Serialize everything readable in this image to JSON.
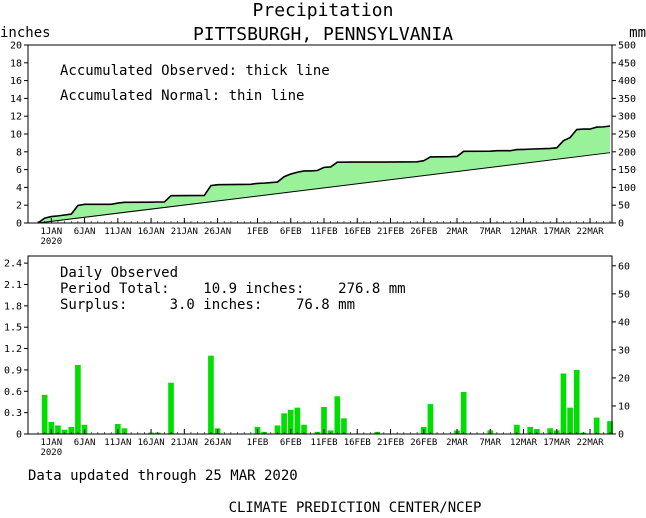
{
  "title": "Precipitation",
  "subtitle": "PITTSBURGH, PENNSYLVANIA",
  "updated": "Data updated through 25 MAR 2020",
  "footer": "CLIMATE PREDICTION CENTER/NCEP",
  "chart_data": [
    {
      "type": "area",
      "panel": "accumulated",
      "ylabel_left": "inches",
      "ylabel_right": "mm",
      "ylim": [
        0,
        20
      ],
      "yticks": [
        "0",
        "2",
        "4",
        "6",
        "8",
        "10",
        "12",
        "14",
        "16",
        "18",
        "20"
      ],
      "ylim_right": [
        0,
        500
      ],
      "yticks_right": [
        "0",
        "50",
        "100",
        "150",
        "200",
        "250",
        "300",
        "350",
        "400",
        "450",
        "500"
      ],
      "annotations": [
        "Accumulated Observed: thick line",
        "Accumulated Normal: thin line"
      ],
      "x_start": "2019-12-30",
      "x_end": "2020-03-25",
      "xtick_labels": [
        "1JAN",
        "6JAN",
        "11JAN",
        "16JAN",
        "21JAN",
        "26JAN",
        "1FEB",
        "6FEB",
        "11FEB",
        "16FEB",
        "21FEB",
        "26FEB",
        "2MAR",
        "7MAR",
        "12MAR",
        "17MAR",
        "22MAR"
      ],
      "xtick_dates": [
        "2020-01-01",
        "2020-01-06",
        "2020-01-11",
        "2020-01-16",
        "2020-01-21",
        "2020-01-26",
        "2020-02-01",
        "2020-02-06",
        "2020-02-11",
        "2020-02-16",
        "2020-02-21",
        "2020-02-26",
        "2020-03-02",
        "2020-03-07",
        "2020-03-12",
        "2020-03-17",
        "2020-03-22"
      ],
      "year_label": "2020",
      "fill_color": "#99f299",
      "series": [
        {
          "name": "Accumulated Observed",
          "dates": [
            "2019-12-30",
            "2019-12-31",
            "2020-01-01",
            "2020-01-02",
            "2020-01-03",
            "2020-01-04",
            "2020-01-05",
            "2020-01-06",
            "2020-01-10",
            "2020-01-11",
            "2020-01-12",
            "2020-01-16",
            "2020-01-17",
            "2020-01-18",
            "2020-01-19",
            "2020-01-24",
            "2020-01-25",
            "2020-01-26",
            "2020-01-31",
            "2020-02-01",
            "2020-02-02",
            "2020-02-04",
            "2020-02-05",
            "2020-02-06",
            "2020-02-07",
            "2020-02-08",
            "2020-02-09",
            "2020-02-10",
            "2020-02-11",
            "2020-02-12",
            "2020-02-13",
            "2020-02-14",
            "2020-02-15",
            "2020-02-20",
            "2020-02-25",
            "2020-02-26",
            "2020-02-27",
            "2020-03-01",
            "2020-03-02",
            "2020-03-03",
            "2020-03-07",
            "2020-03-08",
            "2020-03-10",
            "2020-03-11",
            "2020-03-12",
            "2020-03-13",
            "2020-03-16",
            "2020-03-17",
            "2020-03-18",
            "2020-03-19",
            "2020-03-20",
            "2020-03-21",
            "2020-03-22",
            "2020-03-23",
            "2020-03-24",
            "2020-03-25"
          ],
          "values": [
            0.0,
            0.55,
            0.72,
            0.8,
            0.9,
            1.0,
            1.97,
            2.1,
            2.1,
            2.24,
            2.32,
            2.34,
            2.36,
            2.36,
            3.07,
            3.1,
            4.2,
            4.3,
            4.35,
            4.45,
            4.48,
            4.6,
            5.2,
            5.5,
            5.7,
            5.85,
            5.85,
            5.9,
            6.25,
            6.3,
            6.83,
            6.83,
            6.85,
            6.85,
            6.88,
            7.0,
            7.42,
            7.45,
            7.48,
            8.05,
            8.07,
            8.12,
            8.12,
            8.25,
            8.27,
            8.3,
            8.38,
            8.45,
            9.25,
            9.6,
            10.5,
            10.55,
            10.55,
            10.78,
            10.8,
            10.9
          ]
        },
        {
          "name": "Accumulated Normal",
          "dates": [
            "2019-12-30",
            "2020-03-25"
          ],
          "values": [
            0.0,
            7.9
          ]
        }
      ]
    },
    {
      "type": "bar",
      "panel": "daily",
      "ylim": [
        0,
        2.5
      ],
      "yticks": [
        "0",
        "0.3",
        "0.6",
        "0.9",
        "1.2",
        "1.5",
        "1.8",
        "2.1",
        "2.4"
      ],
      "ylim_right": [
        0,
        63.5
      ],
      "yticks_right": [
        "0",
        "10",
        "20",
        "30",
        "40",
        "50",
        "60"
      ],
      "annotations": [
        "Daily Observed",
        "Period Total:    10.9 inches:    276.8 mm",
        "Surplus:     3.0 inches:    76.8 mm"
      ],
      "bar_color": "#00dd00",
      "xtick_labels": [
        "1JAN",
        "6JAN",
        "11JAN",
        "16JAN",
        "21JAN",
        "26JAN",
        "1FEB",
        "6FEB",
        "11FEB",
        "16FEB",
        "21FEB",
        "26FEB",
        "2MAR",
        "7MAR",
        "12MAR",
        "17MAR",
        "22MAR"
      ],
      "xtick_dates": [
        "2020-01-01",
        "2020-01-06",
        "2020-01-11",
        "2020-01-16",
        "2020-01-21",
        "2020-01-26",
        "2020-02-01",
        "2020-02-06",
        "2020-02-11",
        "2020-02-16",
        "2020-02-21",
        "2020-02-26",
        "2020-03-02",
        "2020-03-07",
        "2020-03-12",
        "2020-03-17",
        "2020-03-22"
      ],
      "year_label": "2020",
      "x": [
        "2019-12-31",
        "2020-01-01",
        "2020-01-02",
        "2020-01-03",
        "2020-01-04",
        "2020-01-05",
        "2020-01-06",
        "2020-01-11",
        "2020-01-12",
        "2020-01-16",
        "2020-01-17",
        "2020-01-19",
        "2020-01-25",
        "2020-01-26",
        "2020-02-01",
        "2020-02-02",
        "2020-02-04",
        "2020-02-05",
        "2020-02-06",
        "2020-02-07",
        "2020-02-08",
        "2020-02-10",
        "2020-02-11",
        "2020-02-12",
        "2020-02-13",
        "2020-02-14",
        "2020-02-19",
        "2020-02-26",
        "2020-02-27",
        "2020-03-02",
        "2020-03-03",
        "2020-03-07",
        "2020-03-11",
        "2020-03-13",
        "2020-03-14",
        "2020-03-16",
        "2020-03-17",
        "2020-03-18",
        "2020-03-19",
        "2020-03-20",
        "2020-03-21",
        "2020-03-23",
        "2020-03-25"
      ],
      "values": [
        0.55,
        0.17,
        0.12,
        0.06,
        0.1,
        0.97,
        0.13,
        0.14,
        0.08,
        0.02,
        0.02,
        0.72,
        1.1,
        0.08,
        0.1,
        0.03,
        0.12,
        0.29,
        0.34,
        0.37,
        0.13,
        0.03,
        0.38,
        0.05,
        0.53,
        0.22,
        0.03,
        0.1,
        0.42,
        0.05,
        0.59,
        0.05,
        0.13,
        0.1,
        0.07,
        0.08,
        0.05,
        0.85,
        0.37,
        0.9,
        0.02,
        0.23,
        0.18
      ]
    }
  ]
}
